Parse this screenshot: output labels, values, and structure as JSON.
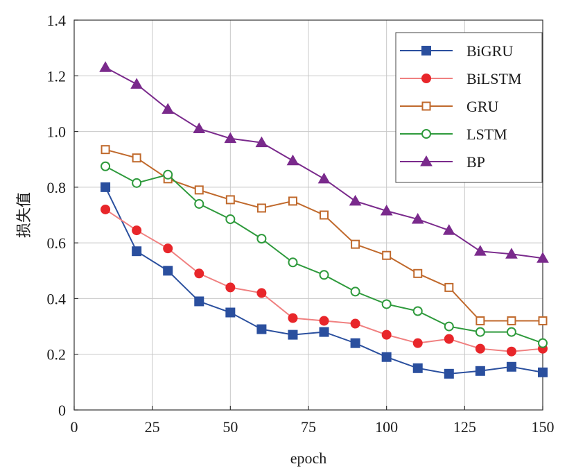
{
  "chart_data": {
    "type": "line",
    "title": "",
    "xlabel": "epoch",
    "ylabel": "损失值",
    "xlim": [
      0,
      150
    ],
    "ylim": [
      0,
      1.4
    ],
    "xticks": [
      0,
      25,
      50,
      75,
      100,
      125,
      150
    ],
    "xtick_labels": [
      "0",
      "25",
      "50",
      "75",
      "100",
      "125",
      "150"
    ],
    "yticks": [
      0,
      0.2,
      0.4,
      0.6,
      0.8,
      1.0,
      1.2,
      1.4
    ],
    "ytick_labels": [
      "0",
      "0.2",
      "0.4",
      "0.6",
      "0.8",
      "1.0",
      "1.2",
      "1.4"
    ],
    "grid": true,
    "legend_position": "top-right",
    "x": [
      10,
      20,
      30,
      40,
      50,
      60,
      70,
      80,
      90,
      100,
      110,
      120,
      130,
      140,
      150
    ],
    "series": [
      {
        "name": "BiGRU",
        "color": "#2a4f9e",
        "marker": "square-filled",
        "values": [
          0.8,
          0.57,
          0.5,
          0.39,
          0.35,
          0.29,
          0.27,
          0.28,
          0.24,
          0.19,
          0.15,
          0.13,
          0.14,
          0.155,
          0.135
        ]
      },
      {
        "name": "BiLSTM",
        "color": "#e8262a",
        "line_color": "#f08080",
        "marker": "circle-filled",
        "values": [
          0.72,
          0.645,
          0.58,
          0.49,
          0.44,
          0.42,
          0.33,
          0.32,
          0.31,
          0.27,
          0.24,
          0.255,
          0.22,
          0.21,
          0.22
        ]
      },
      {
        "name": "GRU",
        "color": "#c0692c",
        "marker": "square-open",
        "values": [
          0.935,
          0.905,
          0.83,
          0.79,
          0.755,
          0.725,
          0.75,
          0.7,
          0.595,
          0.555,
          0.49,
          0.44,
          0.32,
          0.32,
          0.32
        ]
      },
      {
        "name": "LSTM",
        "color": "#2e9a3c",
        "marker": "circle-open",
        "values": [
          0.875,
          0.815,
          0.845,
          0.74,
          0.685,
          0.615,
          0.53,
          0.485,
          0.425,
          0.38,
          0.355,
          0.3,
          0.28,
          0.28,
          0.24
        ]
      },
      {
        "name": "BP",
        "color": "#7a2a8c",
        "marker": "triangle-filled",
        "values": [
          1.23,
          1.17,
          1.08,
          1.01,
          0.975,
          0.96,
          0.895,
          0.83,
          0.75,
          0.715,
          0.685,
          0.645,
          0.57,
          0.56,
          0.545
        ]
      }
    ]
  }
}
